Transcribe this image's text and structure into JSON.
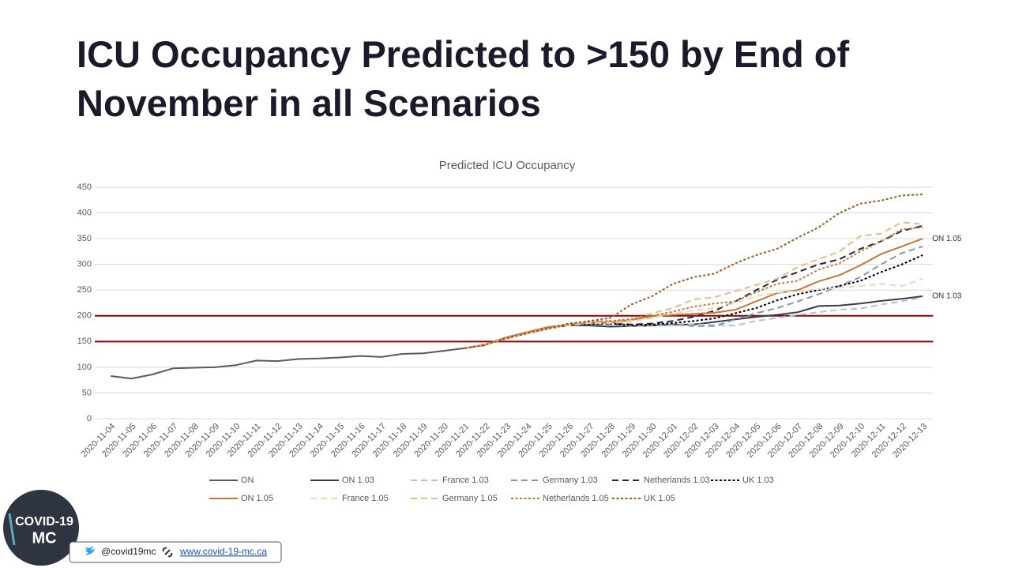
{
  "title": "ICU Occupancy Predicted to >150 by End of November in all Scenarios",
  "chart_data": {
    "type": "line",
    "title": "Predicted ICU Occupancy",
    "categories": [
      "2020-11-04",
      "2020-11-05",
      "2020-11-06",
      "2020-11-07",
      "2020-11-08",
      "2020-11-09",
      "2020-11-10",
      "2020-11-11",
      "2020-11-12",
      "2020-11-13",
      "2020-11-14",
      "2020-11-15",
      "2020-11-16",
      "2020-11-17",
      "2020-11-18",
      "2020-11-19",
      "2020-11-20",
      "2020-11-21",
      "2020-11-22",
      "2020-11-23",
      "2020-11-24",
      "2020-11-25",
      "2020-11-26",
      "2020-11-27",
      "2020-11-28",
      "2020-11-29",
      "2020-11-30",
      "2020-12-01",
      "2020-12-02",
      "2020-12-03",
      "2020-12-04",
      "2020-12-05",
      "2020-12-06",
      "2020-12-07",
      "2020-12-08",
      "2020-12-09",
      "2020-12-10",
      "2020-12-11",
      "2020-12-12",
      "2020-12-13"
    ],
    "series": [
      {
        "name": "ON",
        "color": "#595959",
        "dash": "solid",
        "values": [
          83,
          78,
          86,
          98,
          99,
          100,
          104,
          113,
          112,
          116,
          117,
          119,
          122,
          120,
          126,
          127,
          132,
          137,
          143,
          null,
          null,
          null,
          null,
          null,
          null,
          null,
          null,
          null,
          null,
          null,
          null,
          null,
          null,
          null,
          null,
          null,
          null,
          null,
          null,
          null
        ]
      },
      {
        "name": "ON 1.03",
        "color": "#333f50",
        "dash": "solid",
        "values": [
          null,
          null,
          null,
          null,
          null,
          null,
          null,
          null,
          null,
          null,
          null,
          null,
          null,
          null,
          null,
          null,
          null,
          137,
          144,
          158,
          168,
          178,
          182,
          181,
          179,
          180,
          181,
          183,
          183,
          188,
          193,
          198,
          202,
          207,
          219,
          220,
          224,
          229,
          233,
          238
        ]
      },
      {
        "name": "France 1.03",
        "color": "#bfbfbf",
        "dash": "dash",
        "values": [
          null,
          null,
          null,
          null,
          null,
          null,
          null,
          null,
          null,
          null,
          null,
          null,
          null,
          null,
          null,
          null,
          null,
          137,
          144,
          156,
          166,
          175,
          182,
          184,
          183,
          180,
          181,
          182,
          184,
          182,
          181,
          190,
          196,
          202,
          207,
          212,
          214,
          222,
          228,
          236
        ]
      },
      {
        "name": "Germany 1.03",
        "color": "#8497b0",
        "dash": "dash",
        "values": [
          null,
          null,
          null,
          null,
          null,
          null,
          null,
          null,
          null,
          null,
          null,
          null,
          null,
          null,
          null,
          null,
          null,
          137,
          144,
          156,
          166,
          175,
          182,
          184,
          184,
          181,
          182,
          183,
          180,
          180,
          193,
          205,
          215,
          228,
          242,
          258,
          275,
          300,
          322,
          335
        ]
      },
      {
        "name": "Netherlands 1.03",
        "color": "#222a35",
        "dash": "dash",
        "values": [
          null,
          null,
          null,
          null,
          null,
          null,
          null,
          null,
          null,
          null,
          null,
          null,
          null,
          null,
          null,
          null,
          null,
          137,
          144,
          156,
          166,
          175,
          182,
          185,
          186,
          183,
          185,
          190,
          198,
          210,
          228,
          250,
          270,
          285,
          300,
          310,
          330,
          345,
          365,
          375
        ]
      },
      {
        "name": "UK 1.03",
        "color": "#000000",
        "dash": "short",
        "values": [
          null,
          null,
          null,
          null,
          null,
          null,
          null,
          null,
          null,
          null,
          null,
          null,
          null,
          null,
          null,
          null,
          null,
          137,
          144,
          156,
          166,
          175,
          182,
          184,
          185,
          182,
          183,
          186,
          190,
          195,
          205,
          215,
          230,
          242,
          250,
          258,
          268,
          285,
          300,
          318
        ]
      },
      {
        "name": "ON 1.05",
        "color": "#c5773a",
        "dash": "solid",
        "values": [
          null,
          null,
          null,
          null,
          null,
          null,
          null,
          null,
          null,
          null,
          null,
          null,
          null,
          null,
          null,
          null,
          null,
          137,
          144,
          158,
          168,
          178,
          183,
          186,
          187,
          192,
          199,
          202,
          204,
          206,
          212,
          228,
          244,
          250,
          267,
          279,
          298,
          320,
          335,
          350
        ]
      },
      {
        "name": "France 1.05",
        "color": "#f2d4b8",
        "dash": "dash",
        "values": [
          null,
          null,
          null,
          null,
          null,
          null,
          null,
          null,
          null,
          null,
          null,
          null,
          null,
          null,
          null,
          null,
          null,
          137,
          144,
          156,
          166,
          175,
          182,
          186,
          186,
          188,
          196,
          205,
          210,
          215,
          225,
          238,
          245,
          248,
          252,
          255,
          258,
          262,
          258,
          272
        ]
      },
      {
        "name": "Germany 1.05",
        "color": "#efb887",
        "dash": "dash",
        "values": [
          null,
          null,
          null,
          null,
          null,
          null,
          null,
          null,
          null,
          null,
          null,
          null,
          null,
          null,
          null,
          null,
          null,
          137,
          144,
          156,
          166,
          175,
          184,
          188,
          190,
          192,
          205,
          215,
          232,
          236,
          248,
          260,
          272,
          295,
          310,
          325,
          355,
          360,
          382,
          378
        ]
      },
      {
        "name": "Netherlands 1.05",
        "color": "#c07a40",
        "dash": "short",
        "values": [
          null,
          null,
          null,
          null,
          null,
          null,
          null,
          null,
          null,
          null,
          null,
          null,
          null,
          null,
          null,
          null,
          null,
          137,
          144,
          156,
          166,
          175,
          184,
          189,
          190,
          194,
          200,
          208,
          218,
          224,
          228,
          246,
          262,
          268,
          290,
          302,
          325,
          345,
          368,
          372
        ]
      },
      {
        "name": "UK 1.05",
        "color": "#9c5a22",
        "dash": "short",
        "values": [
          null,
          null,
          null,
          null,
          null,
          null,
          null,
          null,
          null,
          null,
          null,
          null,
          null,
          null,
          null,
          null,
          null,
          137,
          144,
          156,
          166,
          175,
          185,
          190,
          196,
          222,
          238,
          262,
          275,
          282,
          302,
          318,
          330,
          352,
          372,
          400,
          418,
          424,
          434,
          436
        ]
      }
    ],
    "ylim": [
      0,
      450
    ],
    "yticks": [
      0,
      50,
      100,
      150,
      200,
      250,
      300,
      350,
      400,
      450
    ],
    "grid": true,
    "hlines": [
      150,
      200
    ],
    "hline_color": "#8b0000",
    "annotations": [
      "ON 1.05",
      "ON 1.03"
    ],
    "legend": "bottom"
  },
  "footer": {
    "logo": [
      "COVID-19",
      "MC"
    ],
    "twitter": "@covid19mc",
    "website": "www.covid-19-mc.ca"
  }
}
